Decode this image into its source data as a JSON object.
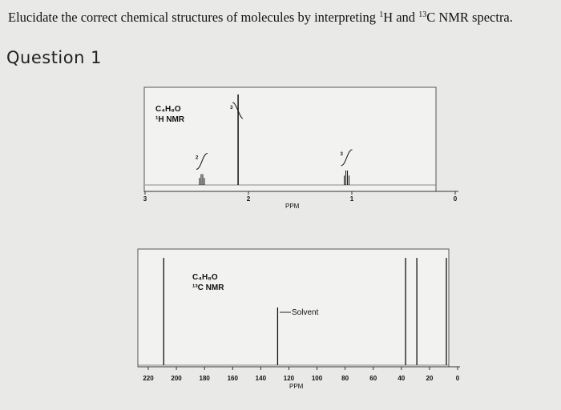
{
  "header": {
    "title": "Elucidate the correct chemical structures of molecules by interpreting ",
    "title_h_sup": "1",
    "title_h": "H and ",
    "title_c_sup": "13",
    "title_c": "C NMR spectra."
  },
  "question": {
    "label": "Question 1"
  },
  "chart_data": [
    {
      "type": "line",
      "formula": "C4H8O",
      "title_line1": "C₄H₈O",
      "title_line2": "¹H NMR",
      "xlabel": "PPM",
      "xlim": [
        3,
        0
      ],
      "x_ticks": [
        "3",
        "2",
        "1",
        "0"
      ],
      "x_tick_values": [
        3,
        2,
        1,
        0
      ],
      "peaks": [
        {
          "ppm": 2.45,
          "height": 0.12,
          "multiplet": true,
          "integration": "2"
        },
        {
          "ppm": 2.1,
          "height": 1.0,
          "multiplet": false,
          "integration": "3"
        },
        {
          "ppm": 1.05,
          "height": 0.16,
          "multiplet": true,
          "integration": "3"
        }
      ]
    },
    {
      "type": "bar",
      "title_line1": "C₄H₈O",
      "title_line2": "¹³C NMR",
      "xlabel": "PPM",
      "xlim": [
        220,
        0
      ],
      "x_ticks": [
        "220",
        "200",
        "180",
        "160",
        "140",
        "120",
        "100",
        "80",
        "60",
        "40",
        "20",
        "0"
      ],
      "x_tick_values": [
        220,
        200,
        180,
        160,
        140,
        120,
        100,
        80,
        60,
        40,
        20,
        0
      ],
      "peaks": [
        {
          "ppm": 209,
          "height": 1.0
        },
        {
          "ppm": 37,
          "height": 1.0
        },
        {
          "ppm": 29,
          "height": 1.0
        },
        {
          "ppm": 8,
          "height": 1.0
        }
      ],
      "solvent": {
        "ppm": 128,
        "label": "Solvent"
      }
    }
  ]
}
